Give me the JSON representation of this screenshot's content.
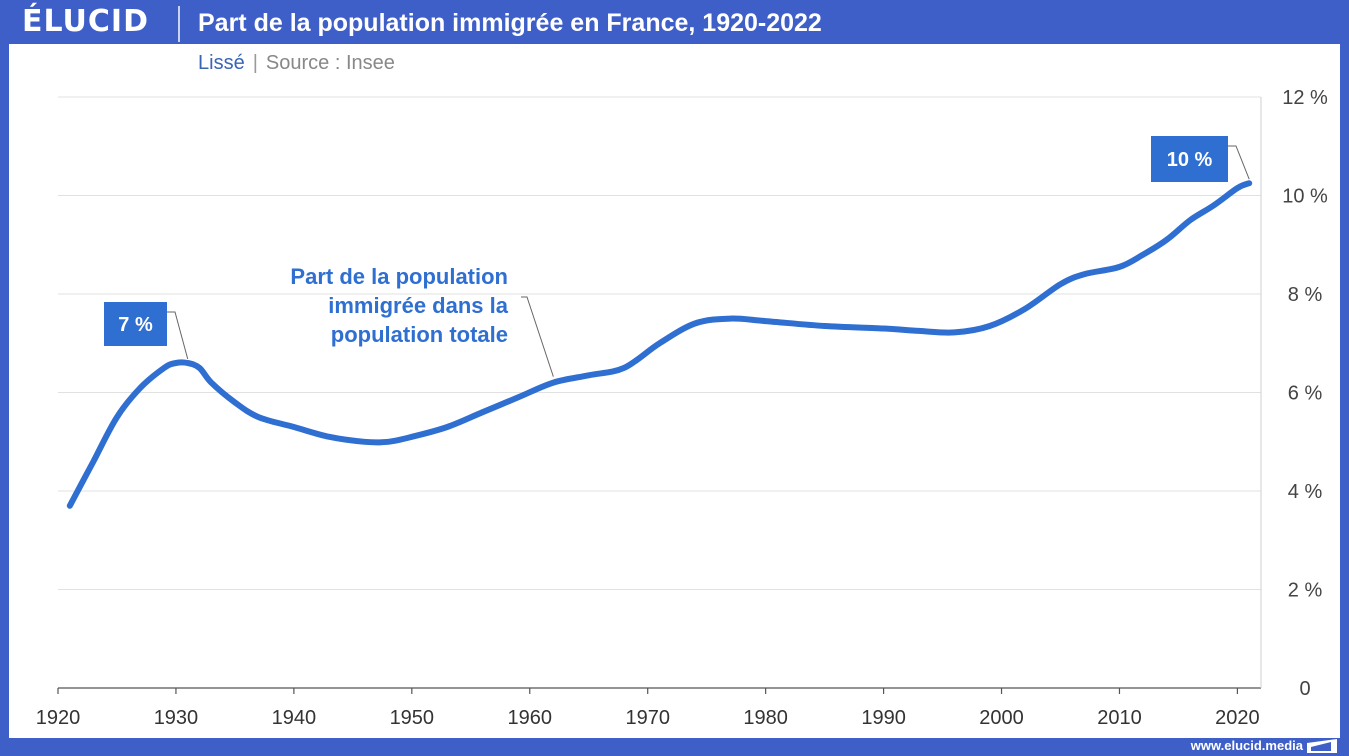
{
  "header": {
    "logo": "ÉLUCID",
    "title": "Part de la population immigrée en France, 1920-2022"
  },
  "subtitle": {
    "smoothed": "Lissé",
    "separator": "|",
    "source": "Source : Insee"
  },
  "footer": {
    "url": "www.elucid.media"
  },
  "colors": {
    "accent": "#3f5fc8",
    "line": "#2f6fd1",
    "label_bg": "#2f6fd1"
  },
  "chart_data": {
    "type": "line",
    "title": "Part de la population immigrée en France, 1920-2022",
    "xlim": [
      1920,
      2022
    ],
    "ylim": [
      0,
      12
    ],
    "x_ticks": [
      "1920",
      "1930",
      "1940",
      "1950",
      "1960",
      "1970",
      "1980",
      "1990",
      "2000",
      "2010",
      "2020"
    ],
    "y_ticks": [
      "0",
      "2 %",
      "4 %",
      "6 %",
      "8 %",
      "10 %",
      "12 %"
    ],
    "grid": true,
    "y_axis_position": "right",
    "series": [
      {
        "name": "Part de la population immigrée dans la population totale",
        "x": [
          1921,
          1923,
          1925,
          1927,
          1929,
          1930,
          1931,
          1932,
          1933,
          1935,
          1937,
          1940,
          1943,
          1946,
          1948,
          1950,
          1953,
          1956,
          1959,
          1962,
          1965,
          1968,
          1971,
          1974,
          1977,
          1980,
          1985,
          1990,
          1993,
          1996,
          1999,
          2002,
          2005,
          2007,
          2010,
          2012,
          2014,
          2016,
          2018,
          2020,
          2021
        ],
        "y": [
          3.7,
          4.6,
          5.5,
          6.1,
          6.5,
          6.6,
          6.6,
          6.5,
          6.2,
          5.8,
          5.5,
          5.3,
          5.1,
          5.0,
          5.0,
          5.1,
          5.3,
          5.6,
          5.9,
          6.2,
          6.35,
          6.5,
          7.0,
          7.4,
          7.5,
          7.45,
          7.35,
          7.3,
          7.25,
          7.22,
          7.35,
          7.7,
          8.2,
          8.4,
          8.55,
          8.8,
          9.1,
          9.5,
          9.8,
          10.15,
          10.25
        ]
      }
    ],
    "annotations": [
      {
        "text": "7 %",
        "x": 1931,
        "y": 6.6
      },
      {
        "text": "10 %",
        "x": 2021,
        "y": 10.25
      },
      {
        "text": "Part de la population immigrée dans la population totale",
        "x": 1962,
        "y": 6.2
      }
    ],
    "annotation_lines": [
      "Part de la population",
      "immigrée dans la",
      "population totale"
    ]
  }
}
